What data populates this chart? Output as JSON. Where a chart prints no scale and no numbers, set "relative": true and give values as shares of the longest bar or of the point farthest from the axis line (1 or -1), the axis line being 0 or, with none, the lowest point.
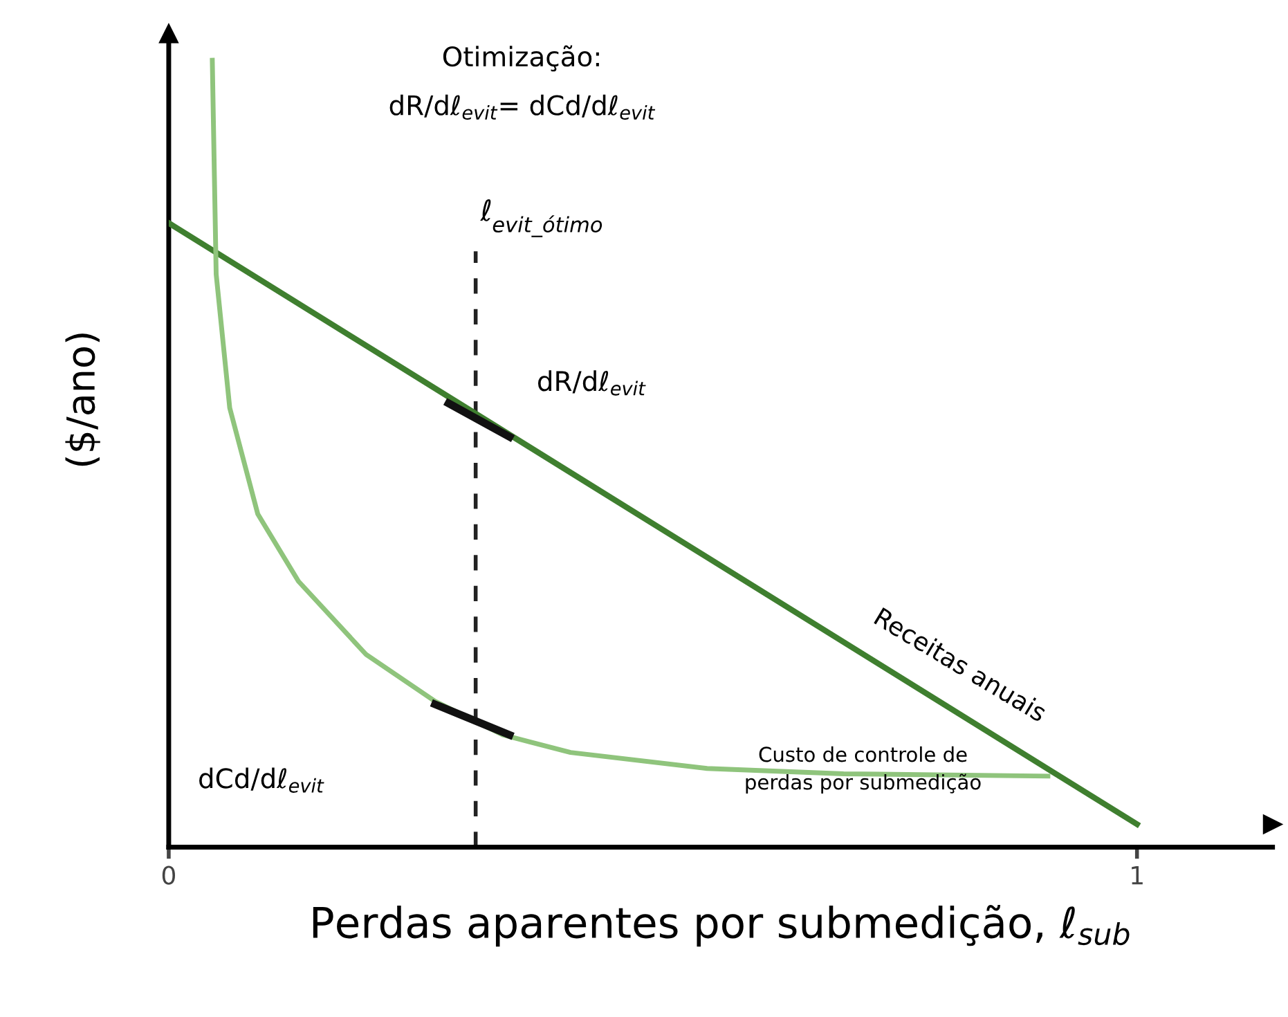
{
  "chart_data": {
    "type": "line",
    "relative": true,
    "title": "Otimização:",
    "subtitle": "dR/dℓ$_{evit}$= dCd/dℓ$_{evit}$",
    "xlabel": "Perdas aparentes por submedição, ℓ$_{sub}$",
    "ylabel": "($/ano)",
    "xlim": [
      0,
      1.14
    ],
    "xticks": [
      0,
      1
    ],
    "tick_labels": "x",
    "grid": false,
    "legend": false,
    "marker": "none",
    "line_style": "solid",
    "series": [
      {
        "name": "Receitas anuais",
        "color": "#3f7f2f",
        "x": [
          0,
          1
        ],
        "values": [
          0.787,
          0
        ]
      },
      {
        "name": "Custo de controle de\nperdas por submedição",
        "color": "#8fc47c",
        "x": [
          0.045,
          0.049,
          0.063,
          0.092,
          0.134,
          0.204,
          0.275,
          0.345,
          0.415,
          0.556,
          0.697,
          0.908
        ],
        "values": [
          1.0,
          0.72,
          0.545,
          0.406,
          0.318,
          0.222,
          0.161,
          0.117,
          0.094,
          0.073,
          0.066,
          0.063
        ]
      },
      {
        "color": "#111111",
        "x": [
          0.289,
          0.352
        ],
        "values": [
          0.551,
          0.507
        ]
      },
      {
        "color": "#111111",
        "x": [
          0.275,
          0.352
        ],
        "values": [
          0.157,
          0.117
        ]
      }
    ],
    "ref_lines": [
      {
        "axis": "x",
        "value": 0.317,
        "label": "ℓ$_{evit_ótimo}$",
        "color": "#222222",
        "line_style": "dashed"
      }
    ],
    "annotations": [
      "dR/dℓ$_{evit}$",
      "dCd/dℓ$_{evit}$"
    ]
  }
}
